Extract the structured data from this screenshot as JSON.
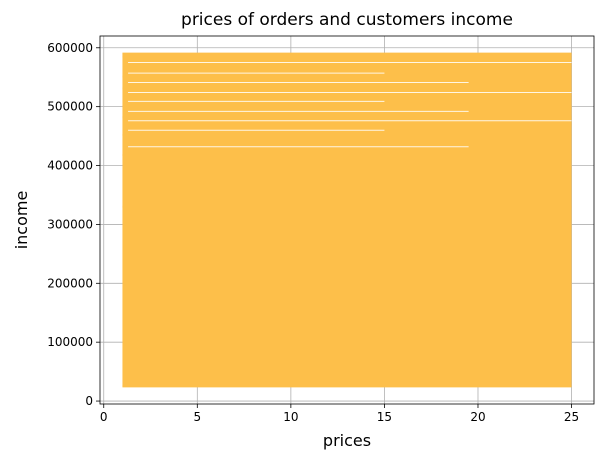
{
  "chart_data": {
    "type": "line",
    "title": "prices of orders and customers income",
    "xlabel": "prices",
    "ylabel": "income",
    "xlim": [
      -0.2,
      26.2
    ],
    "ylim": [
      -5000,
      620000
    ],
    "xticks": [
      0,
      5,
      10,
      15,
      20,
      25
    ],
    "yticks": [
      0,
      100000,
      200000,
      300000,
      400000,
      500000,
      600000
    ],
    "grid": true,
    "series_color": "#fdbf4a",
    "series": [
      {
        "name": "",
        "x_min": 1,
        "x_max": 25,
        "y_min": 25000,
        "y_max": 590000,
        "segments": [
          {
            "x": [
              1.0,
              25.0
            ],
            "y": [
              590000,
              590000
            ]
          },
          {
            "x": [
              1.0,
              25.0
            ],
            "y": [
              585000,
              585000
            ]
          },
          {
            "x": [
              1.1,
              25.0
            ],
            "y": [
              568000,
              568000
            ]
          },
          {
            "x": [
              1.2,
              19.5
            ],
            "y": [
              563000,
              563000
            ]
          },
          {
            "x": [
              1.0,
              25.0
            ],
            "y": [
              551000,
              551000
            ]
          },
          {
            "x": [
              1.0,
              25.0
            ],
            "y": [
              531000,
              531000
            ]
          },
          {
            "x": [
              1.1,
              25.0
            ],
            "y": [
              518000,
              518000
            ]
          },
          {
            "x": [
              1.0,
              25.0
            ],
            "y": [
              500000,
              500000
            ]
          },
          {
            "x": [
              1.0,
              25.0
            ],
            "y": [
              482000,
              482000
            ]
          },
          {
            "x": [
              1.3,
              25.0
            ],
            "y": [
              470000,
              470000
            ]
          },
          {
            "x": [
              1.0,
              25.0
            ],
            "y": [
              452000,
              452000
            ]
          },
          {
            "x": [
              1.0,
              25.0
            ],
            "y": [
              418000,
              418000
            ]
          },
          {
            "x": [
              1.0,
              25.0
            ],
            "y": [
              330000,
              330000
            ]
          },
          {
            "x": [
              1.0,
              25.0
            ],
            "y": [
              25000,
              25000
            ]
          }
        ]
      }
    ]
  }
}
